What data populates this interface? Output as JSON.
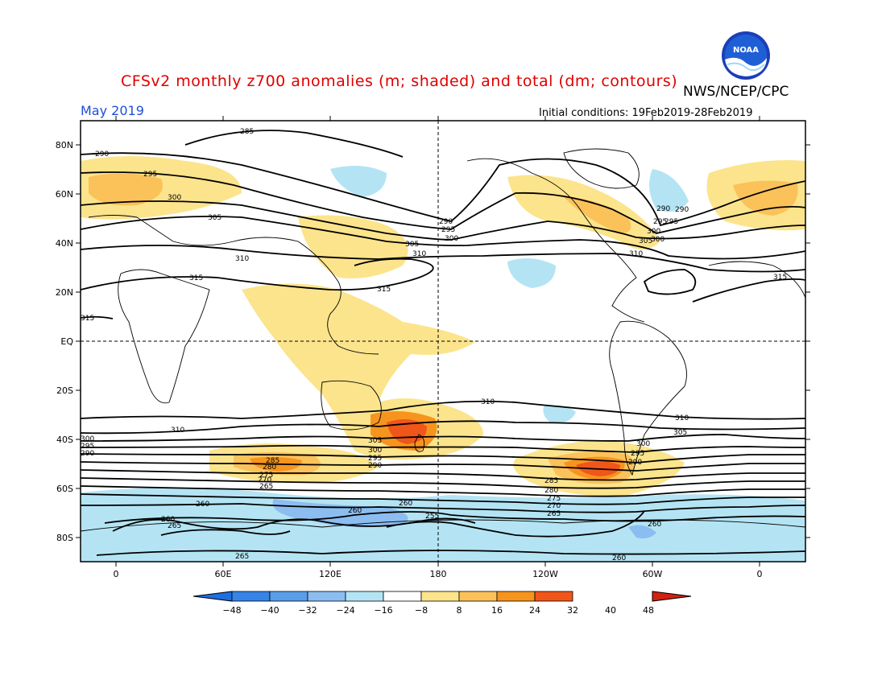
{
  "title": "CFSv2 monthly z700 anomalies (m; shaded) and total (dm; contours)",
  "agency": "NWS/NCEP/CPC",
  "period": "May 2019",
  "initial_conditions": "Initial conditions: 19Feb2019-28Feb2019",
  "logo_text": "NOAA",
  "lat_labels": [
    "80N",
    "60N",
    "40N",
    "20N",
    "EQ",
    "20S",
    "40S",
    "60S",
    "80S"
  ],
  "lon_labels": [
    "0",
    "60E",
    "120E",
    "180",
    "120W",
    "60W",
    "0"
  ],
  "colorbar": {
    "labels": [
      "-48",
      "-40",
      "-32",
      "-24",
      "-16",
      "-8",
      "8",
      "16",
      "24",
      "32",
      "40",
      "48"
    ],
    "colors": [
      "#1e6fe0",
      "#3584e6",
      "#5a9de8",
      "#8cbdf0",
      "#b4e4f4",
      "#ffffff",
      "#fce48c",
      "#fbc25a",
      "#f7941e",
      "#f0561a",
      "#d42010"
    ]
  },
  "contour_labels": [
    "285",
    "290",
    "295",
    "300",
    "305",
    "310",
    "315",
    "315",
    "310",
    "305",
    "300",
    "295",
    "290",
    "290",
    "295",
    "300",
    "290",
    "295",
    "300",
    "305",
    "310",
    "315",
    "310",
    "315",
    "305",
    "300",
    "295",
    "290",
    "285",
    "280",
    "275",
    "270",
    "265",
    "310",
    "305",
    "300",
    "295",
    "290",
    "285",
    "280",
    "275",
    "270",
    "265",
    "310",
    "260",
    "260",
    "260",
    "265",
    "260",
    "255",
    "260",
    "265",
    "260",
    "300",
    "295",
    "290"
  ]
}
